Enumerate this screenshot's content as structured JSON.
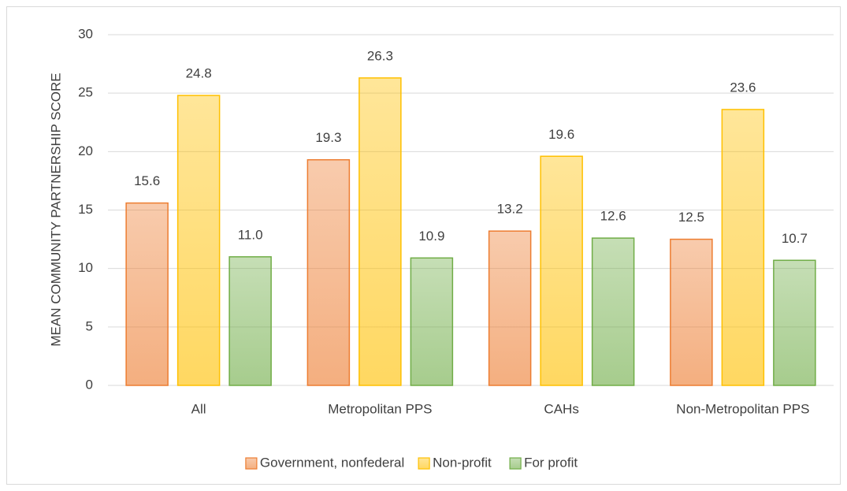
{
  "chart_data": {
    "type": "bar",
    "y_axis_label": "MEAN COMMUNITY PARTNERSHIP SCORE",
    "categories": [
      "All",
      "Metropolitan PPS",
      "CAHs",
      "Non-Metropolitan PPS"
    ],
    "series": [
      {
        "name": "Government, nonfederal",
        "color": "#ed7d31",
        "values": [
          15.6,
          19.3,
          13.2,
          12.5
        ],
        "value_labels": [
          "15.6",
          "19.3",
          "13.2",
          "12.5"
        ]
      },
      {
        "name": "Non-profit",
        "color": "#ffc000",
        "values": [
          24.8,
          26.3,
          19.6,
          23.6
        ],
        "value_labels": [
          "24.8",
          "26.3",
          "19.6",
          "23.6"
        ]
      },
      {
        "name": "For profit",
        "color": "#70ad47",
        "values": [
          11.0,
          10.9,
          12.6,
          10.7
        ],
        "value_labels": [
          "11.0",
          "10.9",
          "12.6",
          "10.7"
        ]
      }
    ],
    "ylim": [
      0,
      30
    ],
    "yticks": [
      0,
      5,
      10,
      15,
      20,
      25,
      30
    ],
    "grid": true,
    "legend": "bottom"
  }
}
